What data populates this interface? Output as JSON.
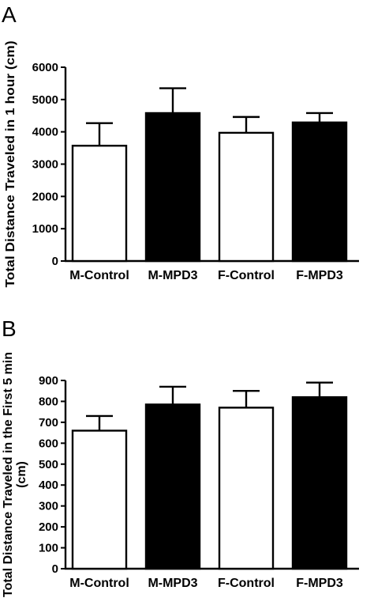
{
  "chart_data": [
    {
      "panel_label": "A",
      "type": "bar",
      "ylabel": "Total Distance Traveled in 1 hour (cm)",
      "ylabel_lines": [
        "Total Distance Traveled in 1 hour (cm)"
      ],
      "categories": [
        "M-Control",
        "M-MPD3",
        "F-Control",
        "F-MPD3"
      ],
      "values": [
        3570,
        4580,
        3970,
        4290
      ],
      "errors": [
        700,
        770,
        490,
        290
      ],
      "fills": [
        "#ffffff",
        "#000000",
        "#ffffff",
        "#000000"
      ],
      "ylim": [
        0,
        6000
      ],
      "yticks": [
        0,
        1000,
        2000,
        3000,
        4000,
        5000,
        6000
      ],
      "ytick_labels": [
        "0",
        "1000",
        "2000",
        "3000",
        "4000",
        "5000",
        "6000"
      ],
      "grid": false,
      "legend": false
    },
    {
      "panel_label": "B",
      "type": "bar",
      "ylabel": "Total Distance Traveled in the First 5 min (cm)",
      "ylabel_lines": [
        "Total Distance Traveled in the First 5 min",
        "(cm)"
      ],
      "categories": [
        "M-Control",
        "M-MPD3",
        "F-Control",
        "F-MPD3"
      ],
      "values": [
        660,
        785,
        770,
        820
      ],
      "errors": [
        70,
        85,
        80,
        70
      ],
      "fills": [
        "#ffffff",
        "#000000",
        "#ffffff",
        "#000000"
      ],
      "ylim": [
        0,
        900
      ],
      "yticks": [
        0,
        100,
        200,
        300,
        400,
        500,
        600,
        700,
        800,
        900
      ],
      "ytick_labels": [
        "0",
        "100",
        "200",
        "300",
        "400",
        "500",
        "600",
        "700",
        "800",
        "900"
      ],
      "grid": false,
      "legend": false
    }
  ]
}
